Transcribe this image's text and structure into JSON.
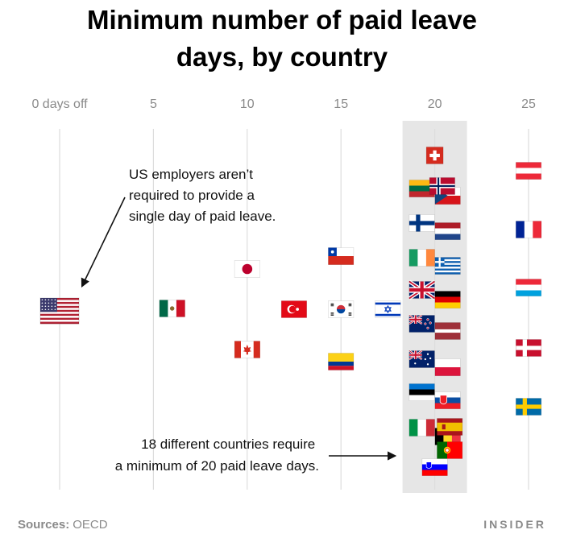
{
  "chart_data": {
    "type": "scatter",
    "title_lines": [
      "Minimum number of paid leave",
      "days, by country"
    ],
    "x_ticks": [
      {
        "value": 0,
        "label": "0 days off"
      },
      {
        "value": 5,
        "label": "5"
      },
      {
        "value": 10,
        "label": "10"
      },
      {
        "value": 15,
        "label": "15"
      },
      {
        "value": 20,
        "label": "20"
      },
      {
        "value": 25,
        "label": "25"
      }
    ],
    "xlim": [
      0,
      25
    ],
    "highlight_value": 20,
    "points": [
      {
        "country": "United States",
        "flag": "us",
        "value": 0
      },
      {
        "country": "Mexico",
        "flag": "mx",
        "value": 6
      },
      {
        "country": "Japan",
        "flag": "jp",
        "value": 10
      },
      {
        "country": "Canada",
        "flag": "ca",
        "value": 10
      },
      {
        "country": "Chile",
        "flag": "cl",
        "value": 15
      },
      {
        "country": "Turkey",
        "flag": "tr",
        "value": 14
      },
      {
        "country": "South Korea",
        "flag": "kr",
        "value": 15
      },
      {
        "country": "Israel",
        "flag": "il",
        "value": 16
      },
      {
        "country": "Colombia",
        "flag": "co",
        "value": 15
      },
      {
        "country": "Switzerland",
        "flag": "ch",
        "value": 20
      },
      {
        "country": "Lithuania",
        "flag": "lt",
        "value": 20
      },
      {
        "country": "Czech Republic",
        "flag": "cz",
        "value": 20
      },
      {
        "country": "Finland",
        "flag": "fi",
        "value": 20
      },
      {
        "country": "Netherlands",
        "flag": "nl",
        "value": 20
      },
      {
        "country": "Ireland",
        "flag": "ie",
        "value": 20
      },
      {
        "country": "Greece",
        "flag": "gr",
        "value": 20
      },
      {
        "country": "United Kingdom",
        "flag": "gb",
        "value": 20
      },
      {
        "country": "Germany",
        "flag": "de",
        "value": 20
      },
      {
        "country": "New Zealand",
        "flag": "nz",
        "value": 20
      },
      {
        "country": "Latvia",
        "flag": "lv",
        "value": 20
      },
      {
        "country": "Australia",
        "flag": "au",
        "value": 20
      },
      {
        "country": "Poland",
        "flag": "pl",
        "value": 20
      },
      {
        "country": "Estonia",
        "flag": "ee",
        "value": 20
      },
      {
        "country": "Slovakia",
        "flag": "sk",
        "value": 20
      },
      {
        "country": "Italy",
        "flag": "it",
        "value": 20
      },
      {
        "country": "Belgium",
        "flag": "be",
        "value": 20
      },
      {
        "country": "Slovenia",
        "flag": "si",
        "value": 20
      },
      {
        "country": "Norway",
        "flag": "no",
        "value": 21
      },
      {
        "country": "Spain",
        "flag": "es",
        "value": 22
      },
      {
        "country": "Portugal",
        "flag": "pt",
        "value": 22
      },
      {
        "country": "Austria",
        "flag": "at",
        "value": 25
      },
      {
        "country": "France",
        "flag": "fr",
        "value": 25
      },
      {
        "country": "Luxembourg",
        "flag": "lu",
        "value": 25
      },
      {
        "country": "Denmark",
        "flag": "dk",
        "value": 25
      },
      {
        "country": "Sweden",
        "flag": "se",
        "value": 25
      }
    ],
    "annotations": [
      {
        "lines": [
          "US employers aren’t",
          "required to provide a",
          "single day of paid leave."
        ]
      },
      {
        "lines": [
          "18 different countries require",
          "a minimum of 20 paid leave days."
        ]
      }
    ]
  },
  "footer": {
    "sources_label": "Sources:",
    "sources_value": "OECD",
    "brand": "INSIDER"
  },
  "colors": {
    "highlight_band": "#e6e6e6",
    "guide_line": "#dddddd",
    "text_muted": "#8a8a8a"
  }
}
